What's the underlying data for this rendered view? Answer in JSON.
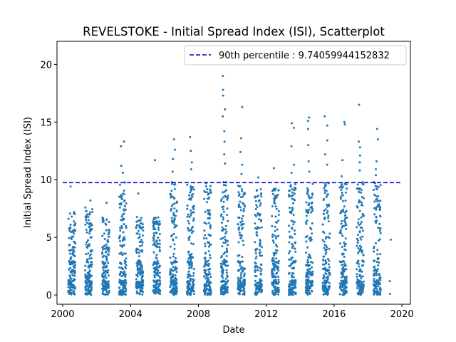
{
  "chart_data": {
    "type": "scatter",
    "title": "REVELSTOKE - Initial Spread Index (ISI), Scatterplot",
    "xlabel": "Date",
    "ylabel": "Initial Spread Index (ISI)",
    "xlim": [
      "1999-09-01",
      "2020-07-01"
    ],
    "ylim": [
      -0.8,
      22
    ],
    "x_ticks": [
      "2000",
      "2004",
      "2008",
      "2012",
      "2016",
      "2020"
    ],
    "y_ticks": [
      "0",
      "5",
      "10",
      "15",
      "20"
    ],
    "legend_position": "top-right",
    "point_color": "#1f77b4",
    "reference_line": {
      "label": "90th percentile : 9.74059944152832",
      "value": 9.74059944152832,
      "color": "#0000cc",
      "style": "dashed"
    },
    "seasons": [
      {
        "year": 2000,
        "start": "2000-05-01",
        "end": "2000-09-30",
        "max": 7.2,
        "peaks": [
          9.4
        ]
      },
      {
        "year": 2001,
        "start": "2001-05-01",
        "end": "2001-09-30",
        "max": 7.6,
        "peaks": [
          8.2
        ]
      },
      {
        "year": 2002,
        "start": "2002-05-01",
        "end": "2002-09-30",
        "max": 6.8,
        "peaks": [
          8.0
        ]
      },
      {
        "year": 2003,
        "start": "2003-05-01",
        "end": "2003-09-30",
        "max": 9.8,
        "peaks": [
          13.3,
          12.9,
          11.2,
          10.6
        ]
      },
      {
        "year": 2004,
        "start": "2004-05-01",
        "end": "2004-09-30",
        "max": 7.0,
        "peaks": [
          8.8
        ]
      },
      {
        "year": 2005,
        "start": "2005-05-01",
        "end": "2005-09-30",
        "max": 6.8,
        "peaks": [
          11.7
        ]
      },
      {
        "year": 2006,
        "start": "2006-05-01",
        "end": "2006-09-30",
        "max": 9.8,
        "peaks": [
          13.5,
          12.6,
          11.8,
          10.7
        ]
      },
      {
        "year": 2007,
        "start": "2007-05-01",
        "end": "2007-09-30",
        "max": 9.6,
        "peaks": [
          13.7,
          12.5,
          11.5,
          10.9
        ]
      },
      {
        "year": 2008,
        "start": "2008-05-01",
        "end": "2008-09-30",
        "max": 9.5,
        "peaks": [
          9.7
        ]
      },
      {
        "year": 2009,
        "start": "2009-05-01",
        "end": "2009-09-30",
        "max": 9.8,
        "peaks": [
          19.0,
          17.8,
          17.3,
          16.1,
          15.5,
          14.2,
          13.3,
          12.2,
          11.4
        ]
      },
      {
        "year": 2010,
        "start": "2010-05-01",
        "end": "2010-09-30",
        "max": 9.7,
        "peaks": [
          16.3,
          13.6,
          12.4,
          11.3,
          10.5
        ]
      },
      {
        "year": 2011,
        "start": "2011-05-01",
        "end": "2011-09-30",
        "max": 9.2,
        "peaks": [
          10.2
        ]
      },
      {
        "year": 2012,
        "start": "2012-05-01",
        "end": "2012-09-30",
        "max": 9.3,
        "peaks": [
          11.0
        ]
      },
      {
        "year": 2013,
        "start": "2013-05-01",
        "end": "2013-09-30",
        "max": 9.8,
        "peaks": [
          14.9,
          14.5,
          12.9,
          11.3,
          10.6
        ]
      },
      {
        "year": 2014,
        "start": "2014-05-01",
        "end": "2014-09-30",
        "max": 9.8,
        "peaks": [
          15.4,
          15.1,
          14.4,
          13.0,
          11.6,
          10.7
        ]
      },
      {
        "year": 2015,
        "start": "2015-05-01",
        "end": "2015-09-30",
        "max": 9.8,
        "peaks": [
          15.5,
          14.7,
          13.4,
          12.2,
          11.3
        ]
      },
      {
        "year": 2016,
        "start": "2016-05-01",
        "end": "2016-09-30",
        "max": 9.7,
        "peaks": [
          15.0,
          14.8,
          11.7,
          10.3
        ]
      },
      {
        "year": 2017,
        "start": "2017-05-01",
        "end": "2017-09-30",
        "max": 9.8,
        "peaks": [
          16.5,
          13.3,
          12.8,
          12.1,
          11.5,
          10.8
        ]
      },
      {
        "year": 2018,
        "start": "2018-05-01",
        "end": "2018-09-30",
        "max": 9.8,
        "peaks": [
          14.4,
          13.5,
          11.6,
          10.9,
          10.4
        ]
      }
    ],
    "late_points": [
      {
        "date": "2019-04-15",
        "y": 1.2
      },
      {
        "date": "2019-04-20",
        "y": 0.1
      },
      {
        "date": "2019-05-05",
        "y": 4.8
      }
    ]
  }
}
